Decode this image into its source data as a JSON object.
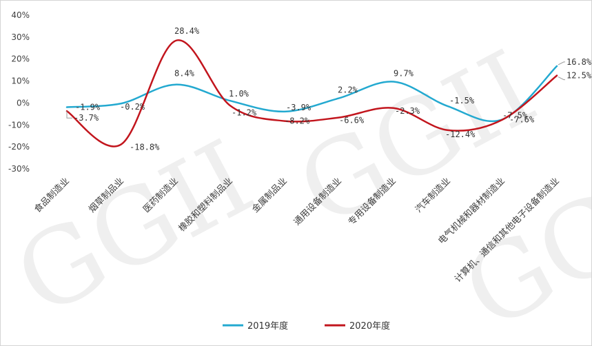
{
  "chart_data": {
    "type": "line",
    "categories": [
      "食品制造业",
      "烟草制品业",
      "医药制造业",
      "橡胶和塑料制品业",
      "金属制品业",
      "通用设备制造业",
      "专用设备制造业",
      "汽车制造业",
      "电气机械和器材制造业",
      "计算机、通信和其他电子设备制造业"
    ],
    "series": [
      {
        "name": "2019年度",
        "color": "#23a9d0",
        "values": [
          -1.9,
          -0.2,
          8.4,
          1.0,
          -3.9,
          2.2,
          9.7,
          -1.5,
          -7.5,
          16.8
        ],
        "labels": [
          "-1.9%",
          "-0.2%",
          "8.4%",
          "1.0%",
          "-3.9%",
          "2.2%",
          "9.7%",
          "-1.5%",
          "-7.5%",
          "16.8%"
        ]
      },
      {
        "name": "2020年度",
        "color": "#c2151d",
        "values": [
          -3.7,
          -18.8,
          28.4,
          -1.2,
          -8.2,
          -6.6,
          -2.3,
          -12.4,
          -7.6,
          12.5
        ],
        "labels": [
          "-3.7%",
          "-18.8%",
          "28.4%",
          "-1.2%",
          "-8.2%",
          "-6.6%",
          "-2.3%",
          "-12.4%",
          "-7.6%",
          "12.5%"
        ]
      }
    ],
    "yticks": [
      "-30%",
      "-20%",
      "-10%",
      "0%",
      "10%",
      "20%",
      "30%",
      "40%"
    ],
    "ylim": [
      -30,
      40
    ],
    "legend": "bottom",
    "grid": false
  },
  "watermark": "GGII"
}
